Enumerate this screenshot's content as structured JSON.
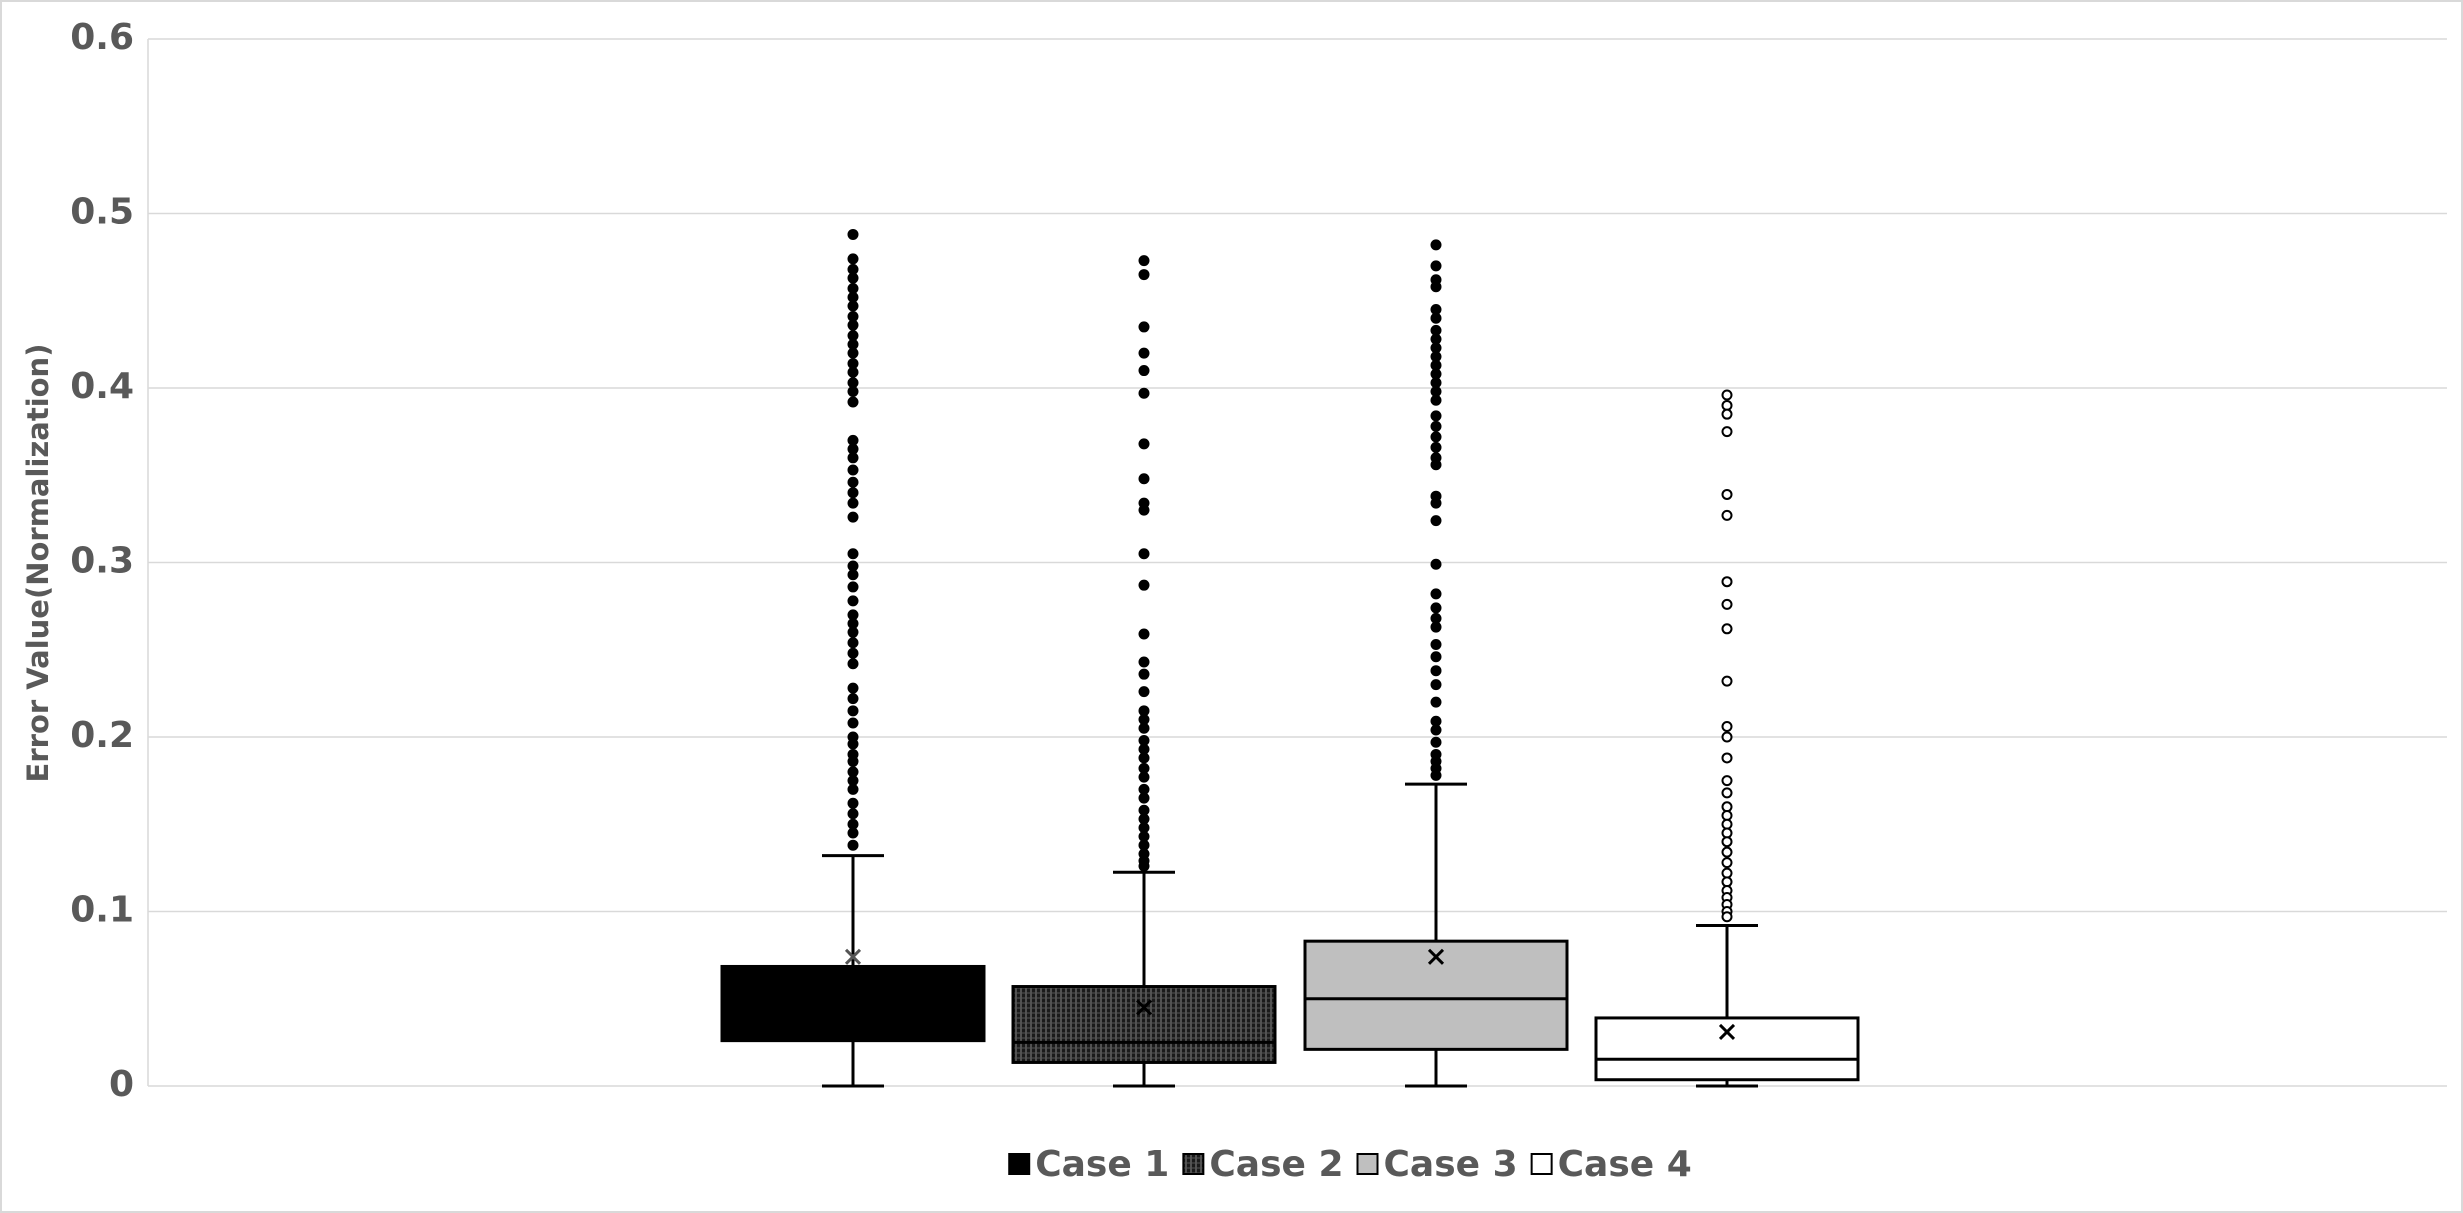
{
  "chart_data": {
    "type": "box",
    "y_label": "Error Value(Normalization)",
    "ylim": [
      0,
      0.6
    ],
    "yticks": [
      0,
      0.1,
      0.2,
      0.3,
      0.4,
      0.5,
      0.6
    ],
    "grid": true,
    "legend": "bottom",
    "series": [
      {
        "name": "Case 1",
        "color": "#000000",
        "pattern": "solid",
        "marker_fill": "#000000",
        "min": 0,
        "q1": 0.026,
        "median": 0.045,
        "q3": 0.0685,
        "max": 0.132,
        "mean": 0.074,
        "outliers": [
          0.488,
          0.474,
          0.468,
          0.463,
          0.457,
          0.452,
          0.447,
          0.441,
          0.436,
          0.43,
          0.425,
          0.42,
          0.414,
          0.409,
          0.403,
          0.398,
          0.392,
          0.37,
          0.365,
          0.36,
          0.353,
          0.346,
          0.34,
          0.334,
          0.326,
          0.305,
          0.298,
          0.293,
          0.286,
          0.278,
          0.27,
          0.265,
          0.26,
          0.254,
          0.248,
          0.242,
          0.228,
          0.222,
          0.215,
          0.208,
          0.2,
          0.196,
          0.19,
          0.186,
          0.18,
          0.175,
          0.17,
          0.162,
          0.156,
          0.15,
          0.145,
          0.138
        ]
      },
      {
        "name": "Case 2",
        "color": "#000000",
        "pattern": "hatch",
        "marker_fill": "#000000",
        "min": 0,
        "q1": 0.0135,
        "median": 0.025,
        "q3": 0.057,
        "max": 0.1225,
        "mean": 0.045,
        "outliers": [
          0.473,
          0.465,
          0.435,
          0.42,
          0.41,
          0.397,
          0.368,
          0.348,
          0.334,
          0.33,
          0.305,
          0.287,
          0.259,
          0.243,
          0.236,
          0.226,
          0.215,
          0.21,
          0.205,
          0.198,
          0.193,
          0.188,
          0.182,
          0.177,
          0.17,
          0.165,
          0.158,
          0.153,
          0.148,
          0.143,
          0.138,
          0.133,
          0.129,
          0.126
        ]
      },
      {
        "name": "Case 3",
        "color": "#bfbfbf",
        "pattern": "solid",
        "marker_fill": "#000000",
        "min": 0,
        "q1": 0.021,
        "median": 0.05,
        "q3": 0.083,
        "max": 0.173,
        "mean": 0.074,
        "outliers": [
          0.482,
          0.47,
          0.462,
          0.458,
          0.445,
          0.44,
          0.433,
          0.428,
          0.423,
          0.418,
          0.413,
          0.408,
          0.403,
          0.398,
          0.393,
          0.384,
          0.378,
          0.372,
          0.366,
          0.36,
          0.356,
          0.338,
          0.334,
          0.324,
          0.299,
          0.282,
          0.274,
          0.268,
          0.263,
          0.253,
          0.246,
          0.238,
          0.23,
          0.22,
          0.209,
          0.204,
          0.197,
          0.19,
          0.186,
          0.182,
          0.178
        ]
      },
      {
        "name": "Case 4",
        "color": "#ffffff",
        "pattern": "solid",
        "marker_fill": "#ffffff",
        "min": 0,
        "q1": 0.0036,
        "median": 0.0153,
        "q3": 0.039,
        "max": 0.092,
        "mean": 0.031,
        "outliers": [
          0.396,
          0.39,
          0.385,
          0.375,
          0.339,
          0.327,
          0.289,
          0.276,
          0.262,
          0.232,
          0.206,
          0.2,
          0.188,
          0.175,
          0.168,
          0.16,
          0.155,
          0.15,
          0.145,
          0.14,
          0.134,
          0.128,
          0.122,
          0.117,
          0.112,
          0.108,
          0.104,
          0.1,
          0.097
        ]
      }
    ]
  }
}
